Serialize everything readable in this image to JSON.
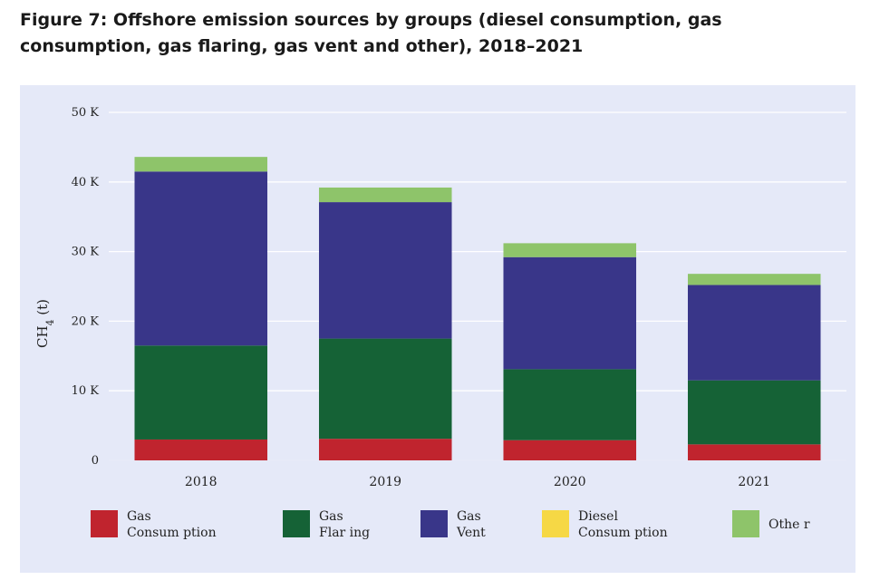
{
  "figure": {
    "title": "Figure 7: Offshore emission sources by groups (diesel consumption, gas consumption, gas flaring, gas vent and other), 2018–2021"
  },
  "chart_data": {
    "type": "bar",
    "stacked": true,
    "title": "Figure 7: Offshore emission sources by groups (diesel consumption, gas consumption, gas flaring, gas vent and other), 2018–2021",
    "xlabel": "",
    "ylabel": "CH4 (t)",
    "ylim": [
      0,
      50000
    ],
    "yticks": [
      0,
      10000,
      20000,
      30000,
      40000,
      50000
    ],
    "ytick_labels": [
      "0",
      "10 K",
      "20 K",
      "30 K",
      "40 K",
      "50 K"
    ],
    "grid": true,
    "legend_position": "bottom",
    "categories": [
      "2018",
      "2019",
      "2020",
      "2021"
    ],
    "series": [
      {
        "name": "Gas Consumption",
        "legend_lines": [
          "Gas",
          "Consum ption"
        ],
        "color": "#c0242e",
        "values": [
          3000,
          3100,
          2900,
          2300
        ]
      },
      {
        "name": "Gas Flaring",
        "legend_lines": [
          "Gas",
          "Flar ing"
        ],
        "color": "#156236",
        "values": [
          13500,
          14400,
          10200,
          9200
        ]
      },
      {
        "name": "Gas Vent",
        "legend_lines": [
          "Gas",
          "Vent"
        ],
        "color": "#393689",
        "values": [
          25000,
          19600,
          16100,
          13700
        ]
      },
      {
        "name": "Diesel Consumption",
        "legend_lines": [
          "Diesel",
          "Consum ption"
        ],
        "color": "#f6d845",
        "values": [
          0,
          0,
          0,
          0
        ]
      },
      {
        "name": "Other",
        "legend_lines": [
          "Othe r"
        ],
        "color": "#8ec46a",
        "values": [
          2100,
          2100,
          2000,
          1600
        ]
      }
    ]
  }
}
